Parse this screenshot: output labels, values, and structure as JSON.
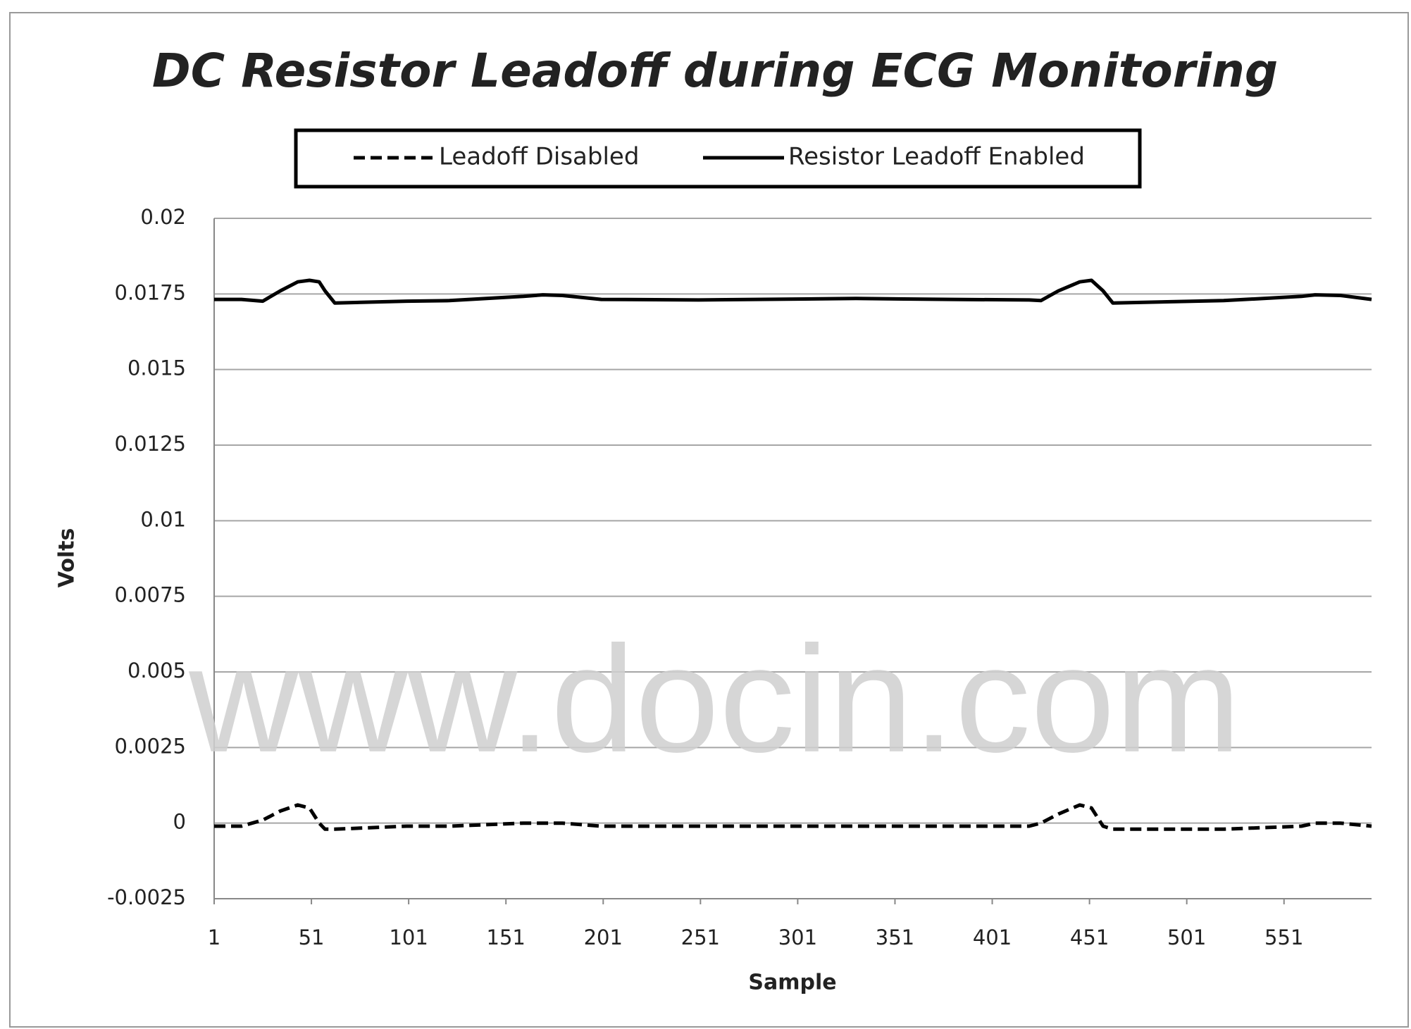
{
  "chart_data": {
    "type": "line",
    "title": "DC Resistor Leadoff during ECG Monitoring",
    "x_label": "Sample",
    "y_label": "Volts",
    "watermark": "www.docin.com",
    "x": [
      1,
      15,
      26,
      35,
      44,
      50,
      55,
      58,
      63,
      100,
      122,
      160,
      170,
      180,
      200,
      250,
      331,
      380,
      420,
      426,
      435,
      446,
      452,
      458,
      463,
      520,
      560,
      567,
      580,
      596
    ],
    "series": [
      {
        "name": "Leadoff Disabled",
        "color": "#000000",
        "dash": true,
        "values": [
          -0.0001,
          -0.0001,
          0.0001,
          0.0004,
          0.0006,
          0.0005,
          0.0,
          -0.0002,
          -0.0002,
          -0.0001,
          -0.0001,
          0.0,
          0.0,
          0.0,
          -0.0001,
          -0.0001,
          -0.0001,
          -0.0001,
          -0.0001,
          0.0,
          0.0003,
          0.0006,
          0.0005,
          -0.0001,
          -0.0002,
          -0.0002,
          -0.0001,
          0.0,
          0.0,
          -0.0001
        ]
      },
      {
        "name": "Resistor Leadoff Enabled",
        "color": "#000000",
        "dash": false,
        "values": [
          0.01732,
          0.01732,
          0.01726,
          0.0176,
          0.0179,
          0.01795,
          0.0179,
          0.0176,
          0.0172,
          0.01726,
          0.01728,
          0.01742,
          0.01747,
          0.01745,
          0.01732,
          0.0173,
          0.01735,
          0.01732,
          0.0173,
          0.01728,
          0.0176,
          0.0179,
          0.01795,
          0.0176,
          0.0172,
          0.01728,
          0.01742,
          0.01747,
          0.01745,
          0.01732
        ]
      }
    ],
    "xlim": [
      1,
      596
    ],
    "xticks": [
      1,
      51,
      101,
      151,
      201,
      251,
      301,
      351,
      401,
      451,
      501,
      551
    ],
    "ylim": [
      -0.0025,
      0.02
    ],
    "yticks": [
      -0.0025,
      0,
      0.0025,
      0.005,
      0.0075,
      0.01,
      0.0125,
      0.015,
      0.0175,
      0.02
    ],
    "grid": true,
    "legend": "top"
  }
}
